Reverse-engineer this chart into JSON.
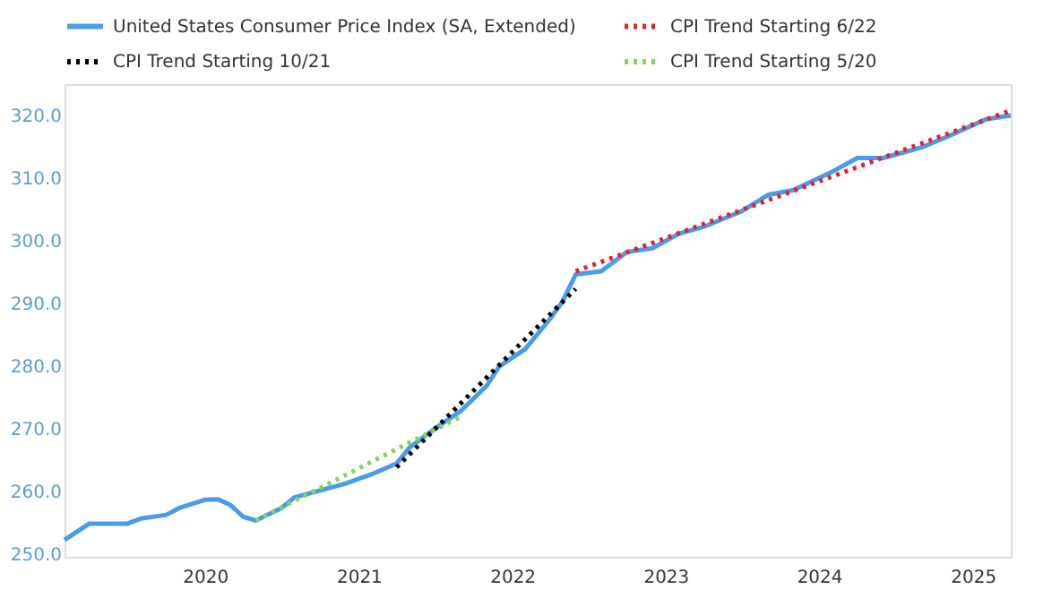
{
  "chart_data": {
    "type": "line",
    "xlim": [
      "2019-02",
      "2025-04"
    ],
    "xticks": [
      "2020",
      "2021",
      "2022",
      "2023",
      "2024",
      "2025"
    ],
    "ylim": [
      249.5,
      325
    ],
    "yticks": [
      {
        "value": 250,
        "label": "250.0"
      },
      {
        "value": 260,
        "label": "260.0"
      },
      {
        "value": 270,
        "label": "270.0"
      },
      {
        "value": 280,
        "label": "280.0"
      },
      {
        "value": 290,
        "label": "290.0"
      },
      {
        "value": 300,
        "label": "300.0"
      },
      {
        "value": 310,
        "label": "310.0"
      },
      {
        "value": 320,
        "label": "320.0"
      }
    ],
    "grid": false,
    "legend": "top",
    "marker": "none",
    "series": [
      {
        "name": "United States Consumer Price Index (SA, Extended)",
        "color": "#4a9be8",
        "line_style": "solid",
        "x": [
          "2019-02",
          "2019-04",
          "2019-07",
          "2019-08",
          "2019-10",
          "2019-11",
          "2020-01",
          "2020-02",
          "2020-03",
          "2020-04",
          "2020-05",
          "2020-07",
          "2020-08",
          "2020-10",
          "2020-12",
          "2021-02",
          "2021-04",
          "2021-05",
          "2021-07",
          "2021-08",
          "2021-09",
          "2021-11",
          "2021-12",
          "2022-02",
          "2022-04",
          "2022-05",
          "2022-06",
          "2022-08",
          "2022-10",
          "2022-12",
          "2023-02",
          "2023-04",
          "2023-07",
          "2023-09",
          "2023-11",
          "2024-02",
          "2024-04",
          "2024-06",
          "2024-09",
          "2024-11",
          "2025-02",
          "2025-04"
        ],
        "values": [
          252.2,
          254.8,
          254.8,
          255.6,
          256.2,
          257.3,
          258.6,
          258.7,
          257.8,
          255.9,
          255.3,
          257.3,
          259.0,
          260.1,
          261.2,
          262.7,
          264.4,
          266.9,
          270.0,
          271.4,
          272.8,
          276.8,
          279.9,
          282.7,
          287.5,
          290.3,
          294.6,
          295.1,
          298.2,
          298.8,
          301.1,
          302.2,
          304.7,
          307.3,
          308.1,
          311.0,
          313.2,
          313.2,
          314.9,
          316.6,
          319.4,
          320.0
        ]
      },
      {
        "name": "CPI Trend Starting 6/22",
        "color": "#e8202a",
        "line_style": "dotted",
        "x": [
          "2022-06",
          "2025-04"
        ],
        "values": [
          295.1,
          320.8
        ]
      },
      {
        "name": "CPI Trend Starting 10/21",
        "color": "#000000",
        "line_style": "dotted",
        "x": [
          "2021-04",
          "2022-06"
        ],
        "values": [
          263.8,
          292.3
        ]
      },
      {
        "name": "CPI Trend Starting 5/20",
        "color": "#7ed957",
        "line_style": "dotted",
        "x": [
          "2020-05",
          "2021-09"
        ],
        "values": [
          255.3,
          271.9
        ]
      }
    ]
  }
}
